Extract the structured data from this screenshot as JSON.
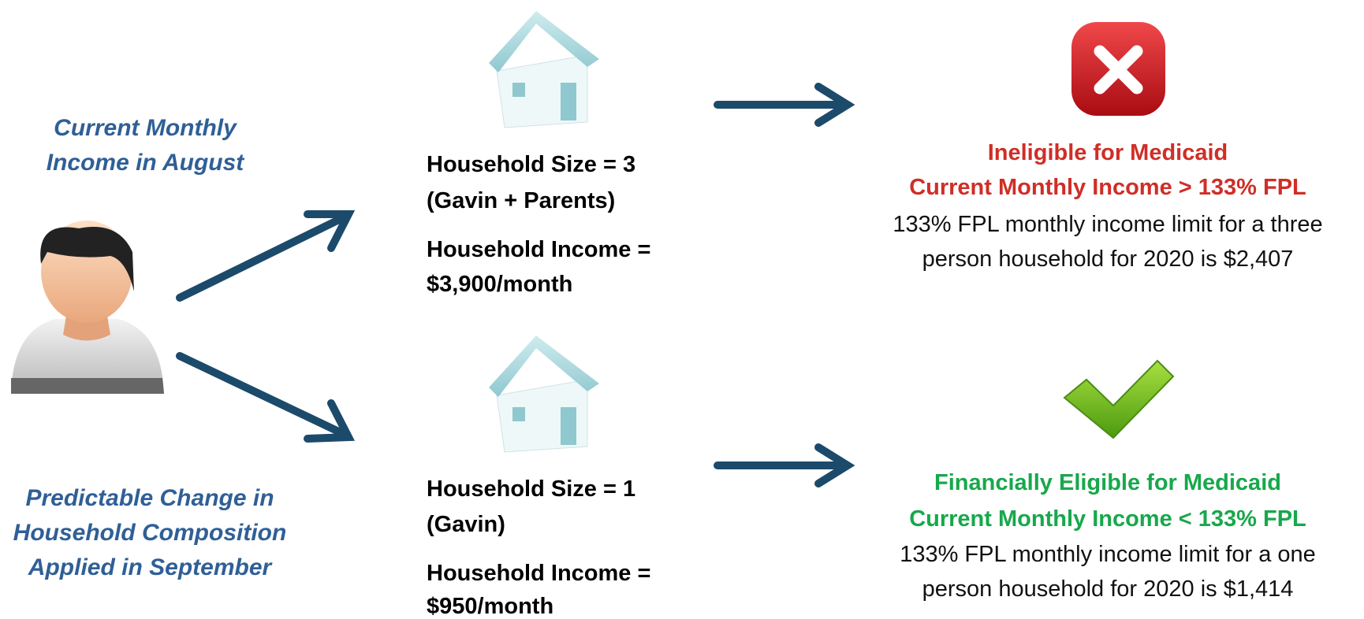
{
  "left_labels": {
    "current": [
      "Current Monthly",
      "Income in August"
    ],
    "change": [
      "Predictable Change in",
      "Household Composition",
      "Applied in September"
    ]
  },
  "scenarios": [
    {
      "size": [
        "Household Size = 3",
        "(Gavin + Parents)"
      ],
      "income": [
        "Household Income =",
        "$3,900/month"
      ],
      "result": {
        "heading": [
          "Ineligible for Medicaid",
          "Current Monthly Income > 133% FPL"
        ],
        "detail": [
          "133% FPL monthly income limit for a three",
          "person household for 2020 is $2,407"
        ]
      }
    },
    {
      "size": [
        "Household Size = 1",
        "(Gavin)"
      ],
      "income": [
        "Household Income =",
        "$950/month"
      ],
      "result": {
        "heading": [
          "Financially Eligible for Medicaid",
          "Current Monthly Income < 133% FPL"
        ],
        "detail": [
          "133% FPL monthly income limit for a one",
          "person household for 2020 is $1,414"
        ]
      }
    }
  ]
}
